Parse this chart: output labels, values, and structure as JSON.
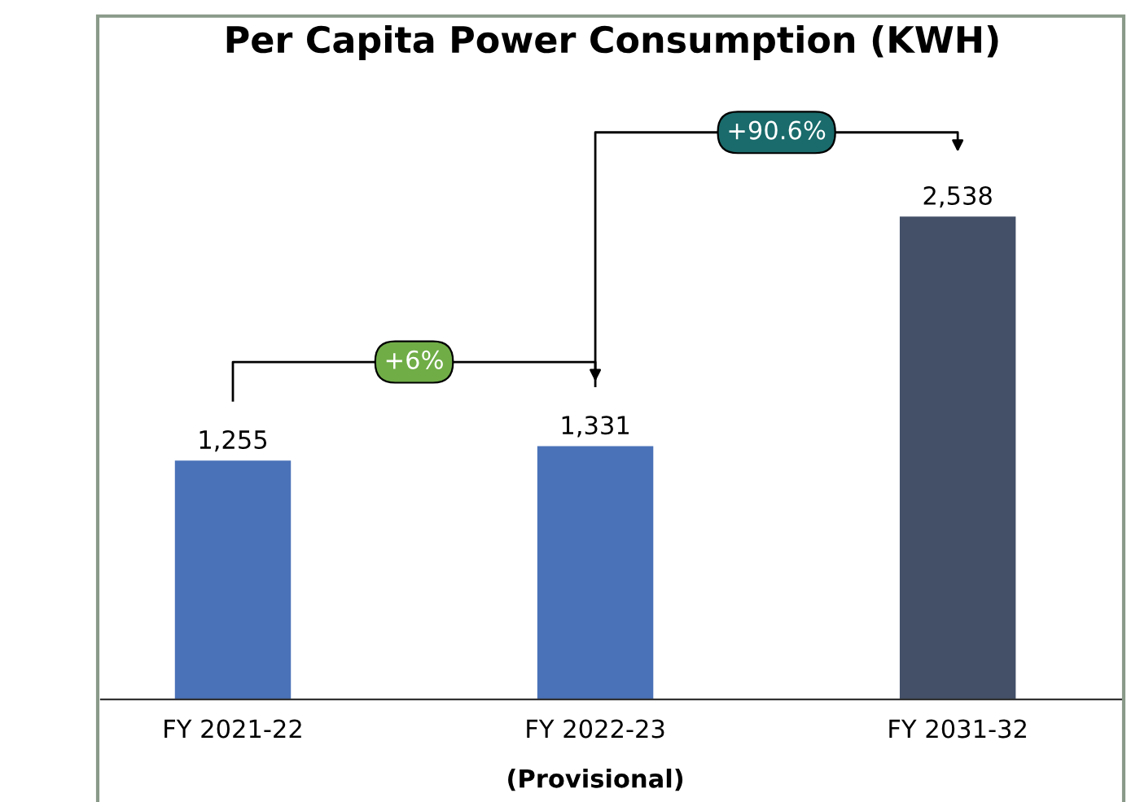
{
  "chart_data": {
    "type": "bar",
    "title": "Per Capita Power Consumption (KWH)",
    "categories": [
      "FY 2021-22",
      "FY 2022-23\n(Provisional)",
      "FY 2031-32"
    ],
    "values": [
      1255,
      1331,
      2538
    ],
    "colors": [
      "#4a72b8",
      "#4a72b8",
      "#435068"
    ],
    "value_labels": [
      "1,255",
      "1,331",
      "2,538"
    ],
    "annotations": [
      "+6%",
      "+90.6%"
    ]
  }
}
